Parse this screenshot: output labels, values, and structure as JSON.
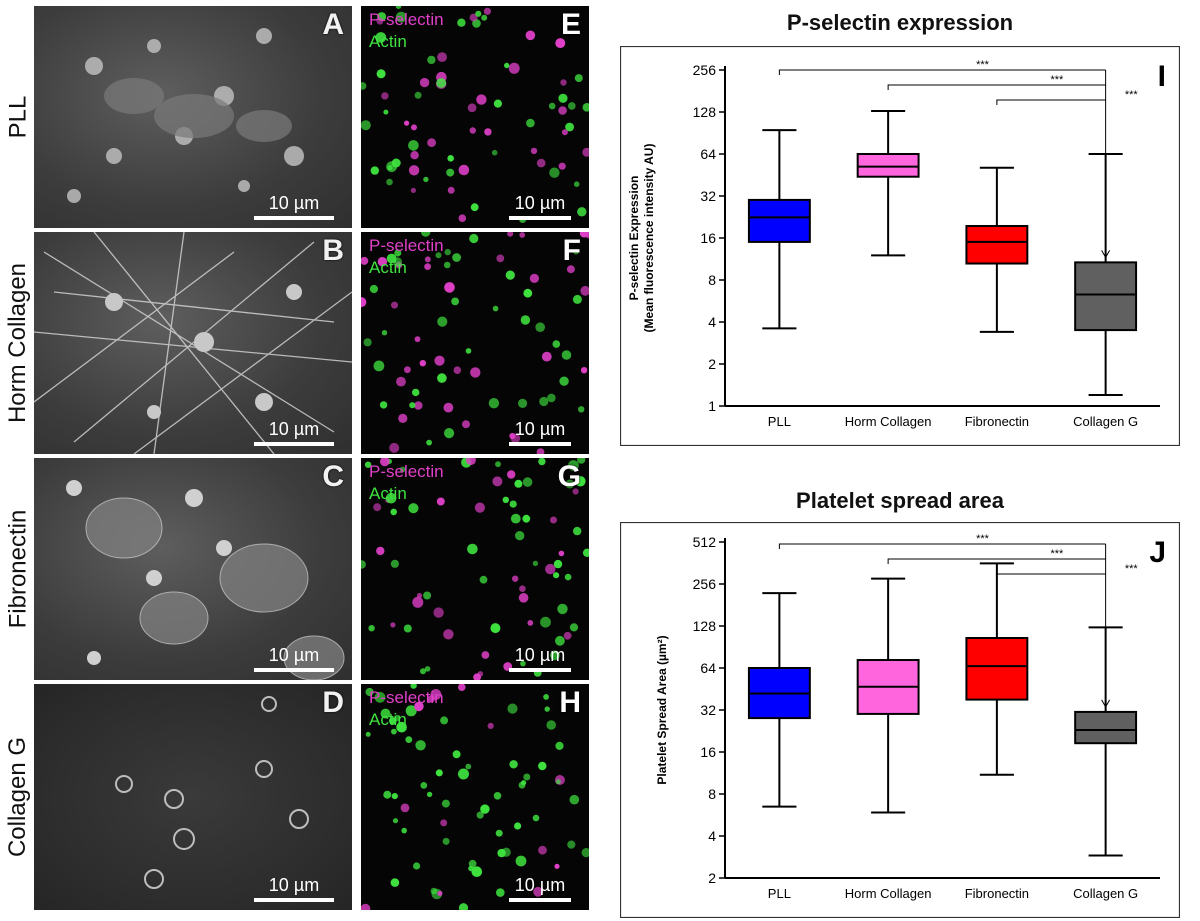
{
  "row_labels": [
    "PLL",
    "Horm Collagen",
    "Fibronectin",
    "Collagen G"
  ],
  "sem_panels": [
    {
      "letter": "A",
      "scale": "10 µm"
    },
    {
      "letter": "B",
      "scale": "10 µm"
    },
    {
      "letter": "C",
      "scale": "10 µm"
    },
    {
      "letter": "D",
      "scale": "10 µm"
    }
  ],
  "fluo_panels": [
    {
      "letter": "E",
      "scale": "10 µm"
    },
    {
      "letter": "F",
      "scale": "10 µm"
    },
    {
      "letter": "G",
      "scale": "10 µm"
    },
    {
      "letter": "H",
      "scale": "10 µm"
    }
  ],
  "channels": {
    "pselectin": "P-selectin",
    "actin": "Actin"
  },
  "colors": {
    "blue": "#0000ff",
    "pink": "#ff66dd",
    "red": "#ff0000",
    "grey": "#606060",
    "pselectin": "#e040c8",
    "actin": "#3fe33f"
  },
  "chart_data": [
    {
      "type": "box",
      "panel_letter": "I",
      "title": "P-selectin expression",
      "ylabel_line1": "P-selectin Expression",
      "ylabel_line2": "(Mean fluorescence intensity AU)",
      "yscale": "log2",
      "ylim": [
        1,
        256
      ],
      "yticks": [
        1,
        2,
        4,
        8,
        16,
        32,
        64,
        128,
        256
      ],
      "categories": [
        "PLL",
        "Horm Collagen",
        "Fibronectin",
        "Collagen G"
      ],
      "boxes": [
        {
          "name": "PLL",
          "min": 3.6,
          "q1": 15,
          "median": 22.5,
          "q3": 30,
          "max": 95,
          "color": "#0000ff"
        },
        {
          "name": "Horm Collagen",
          "min": 12,
          "q1": 44,
          "median": 52,
          "q3": 64,
          "max": 130,
          "color": "#ff66dd"
        },
        {
          "name": "Fibronectin",
          "min": 3.4,
          "q1": 10.5,
          "median": 15,
          "q3": 19.5,
          "max": 51,
          "color": "#ff0000"
        },
        {
          "name": "Collagen G",
          "min": 1.2,
          "q1": 3.5,
          "median": 6.3,
          "q3": 10.7,
          "max": 64,
          "color": "#606060"
        }
      ],
      "significance": [
        {
          "from": "PLL",
          "to": "Collagen G",
          "label": "***"
        },
        {
          "from": "Horm Collagen",
          "to": "Collagen G",
          "label": "***"
        },
        {
          "from": "Fibronectin",
          "to": "Collagen G",
          "label": "***"
        }
      ]
    },
    {
      "type": "box",
      "panel_letter": "J",
      "title": "Platelet spread area",
      "ylabel_line1": "Platelet Spread Area (µm²)",
      "ylabel_line2": "",
      "yscale": "log2",
      "ylim": [
        2,
        512
      ],
      "yticks": [
        2,
        4,
        8,
        16,
        32,
        64,
        128,
        256,
        512
      ],
      "categories": [
        "PLL",
        "Horm Collagen",
        "Fibronectin",
        "Collagen G"
      ],
      "boxes": [
        {
          "name": "PLL",
          "min": 6.5,
          "q1": 28,
          "median": 42,
          "q3": 64,
          "max": 220,
          "color": "#0000ff"
        },
        {
          "name": "Horm Collagen",
          "min": 5.9,
          "q1": 30,
          "median": 47,
          "q3": 73,
          "max": 280,
          "color": "#ff66dd"
        },
        {
          "name": "Fibronectin",
          "min": 11,
          "q1": 38,
          "median": 66,
          "q3": 105,
          "max": 360,
          "color": "#ff0000"
        },
        {
          "name": "Collagen G",
          "min": 2.9,
          "q1": 18.5,
          "median": 23,
          "q3": 31,
          "max": 125,
          "color": "#606060"
        }
      ],
      "significance": [
        {
          "from": "PLL",
          "to": "Collagen G",
          "label": "***"
        },
        {
          "from": "Horm Collagen",
          "to": "Collagen G",
          "label": "***"
        },
        {
          "from": "Fibronectin",
          "to": "Collagen G",
          "label": "***"
        }
      ]
    }
  ]
}
